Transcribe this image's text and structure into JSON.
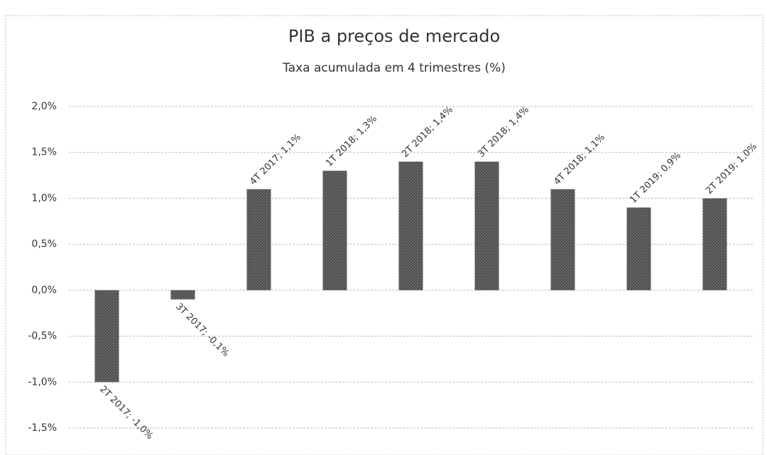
{
  "chart_data": {
    "type": "bar",
    "title": "PIB a preços de mercado",
    "subtitle": "Taxa acumulada em 4 trimestres (%)",
    "values": [
      -1.0,
      -0.1,
      1.1,
      1.3,
      1.4,
      1.4,
      1.1,
      0.9,
      1.0
    ],
    "value_labels": [
      "2T 2017; -1,0%",
      "3T 2017; -0,1%",
      "4T 2017; 1,1%",
      "1T 2018; 1,3%",
      "2T 2018; 1,4%",
      "3T 2018; 1,4%",
      "4T 2018; 1,1%",
      "1T 2019; 0,9%",
      "2T 2019; 1,0%"
    ],
    "color": "#5a5a5a",
    "ylim": [
      -1.5,
      2.0
    ],
    "yticks": [
      {
        "value": -1.5,
        "label": "-1,5%"
      },
      {
        "value": -1.0,
        "label": "-1,0%"
      },
      {
        "value": -0.5,
        "label": "-0,5%"
      },
      {
        "value": 0.0,
        "label": "0,0%"
      },
      {
        "value": 0.5,
        "label": "0,5%"
      },
      {
        "value": 1.0,
        "label": "1,0%"
      },
      {
        "value": 1.5,
        "label": "1,5%"
      },
      {
        "value": 2.0,
        "label": "2,0%"
      }
    ],
    "grid": true
  }
}
